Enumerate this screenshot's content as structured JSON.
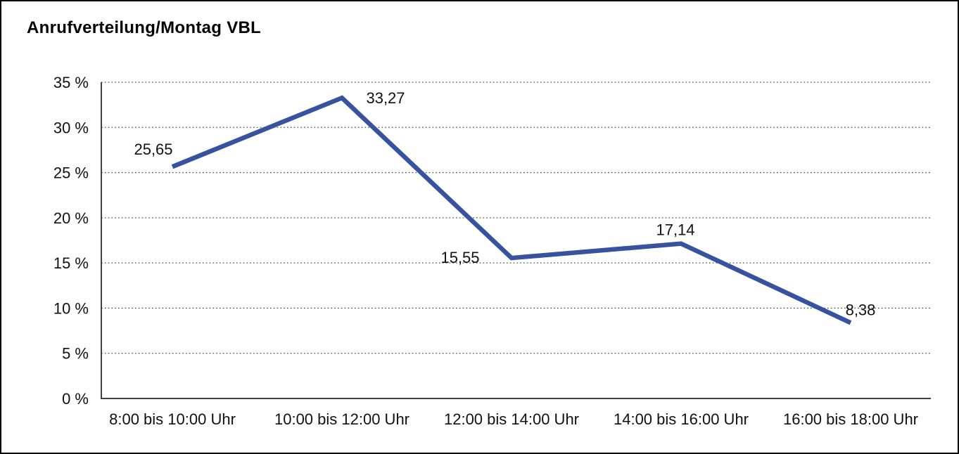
{
  "window": {
    "title": "Anrufverteilung/Montag VBL"
  },
  "chart_data": {
    "type": "line",
    "title": "Anrufverteilung/Montag VBL",
    "categories": [
      "8:00 bis 10:00 Uhr",
      "10:00 bis 12:00 Uhr",
      "12:00 bis 14:00 Uhr",
      "14:00 bis 16:00 Uhr",
      "16:00 bis 18:00 Uhr"
    ],
    "values": [
      25.65,
      33.27,
      15.55,
      17.14,
      8.38
    ],
    "value_labels": [
      "25,65",
      "33,27",
      "15,55",
      "17,14",
      "8,38"
    ],
    "series_name": "Anrufverteilung Montag VBL",
    "xlabel": "",
    "ylabel": "",
    "ylim": [
      0,
      35
    ],
    "y_tick_step": 5,
    "y_ticks": [
      "35 %",
      "30 %",
      "25 %",
      "20 %",
      "15 %",
      "10 %",
      "5 %",
      "0 %"
    ],
    "grid": "horizontal-dotted",
    "legend": "none",
    "colors": {
      "line": "#37539F",
      "gridline": "#595959",
      "axis": "#404040",
      "text": "#111111",
      "border": "#000000",
      "background": "#FFFFFF"
    }
  }
}
